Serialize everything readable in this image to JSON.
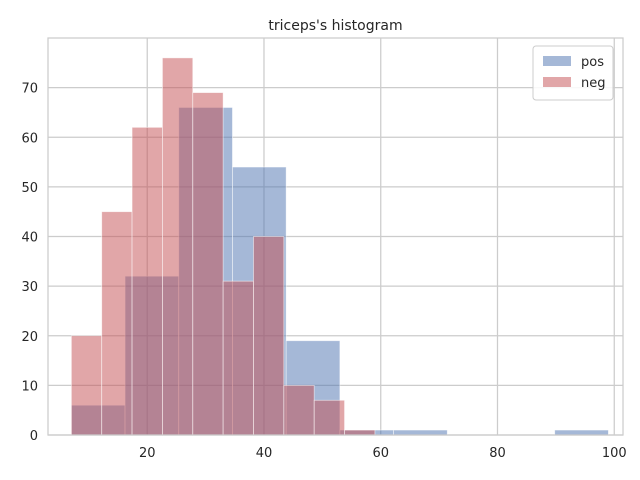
{
  "chart_data": {
    "type": "bar",
    "title": "triceps's histogram",
    "xlabel": "",
    "ylabel": "",
    "xlim": [
      3,
      101.5
    ],
    "ylim": [
      0,
      80
    ],
    "x_ticks": [
      20,
      40,
      60,
      80,
      100
    ],
    "y_ticks": [
      0,
      10,
      20,
      30,
      40,
      50,
      60,
      70
    ],
    "grid": true,
    "legend_position": "top-right",
    "series": [
      {
        "name": "pos",
        "color": "#4c72b0",
        "bins": [
          {
            "x0": 7,
            "x1": 16.2,
            "count": 6
          },
          {
            "x0": 16.2,
            "x1": 25.4,
            "count": 32
          },
          {
            "x0": 25.4,
            "x1": 34.6,
            "count": 66
          },
          {
            "x0": 34.6,
            "x1": 43.8,
            "count": 54
          },
          {
            "x0": 43.8,
            "x1": 53,
            "count": 19
          },
          {
            "x0": 53,
            "x1": 62.2,
            "count": 1
          },
          {
            "x0": 62.2,
            "x1": 71.4,
            "count": 1
          },
          {
            "x0": 71.4,
            "x1": 80.6,
            "count": 0
          },
          {
            "x0": 80.6,
            "x1": 89.8,
            "count": 0
          },
          {
            "x0": 89.8,
            "x1": 99,
            "count": 1
          }
        ]
      },
      {
        "name": "neg",
        "color": "#c44e52",
        "bins": [
          {
            "x0": 7,
            "x1": 12.2,
            "count": 20
          },
          {
            "x0": 12.2,
            "x1": 17.4,
            "count": 45
          },
          {
            "x0": 17.4,
            "x1": 22.6,
            "count": 62
          },
          {
            "x0": 22.6,
            "x1": 27.8,
            "count": 76
          },
          {
            "x0": 27.8,
            "x1": 33,
            "count": 69
          },
          {
            "x0": 33,
            "x1": 38.2,
            "count": 31
          },
          {
            "x0": 38.2,
            "x1": 43.4,
            "count": 40
          },
          {
            "x0": 43.4,
            "x1": 48.6,
            "count": 10
          },
          {
            "x0": 48.6,
            "x1": 53.8,
            "count": 7
          },
          {
            "x0": 53.8,
            "x1": 59,
            "count": 1
          }
        ]
      }
    ]
  }
}
